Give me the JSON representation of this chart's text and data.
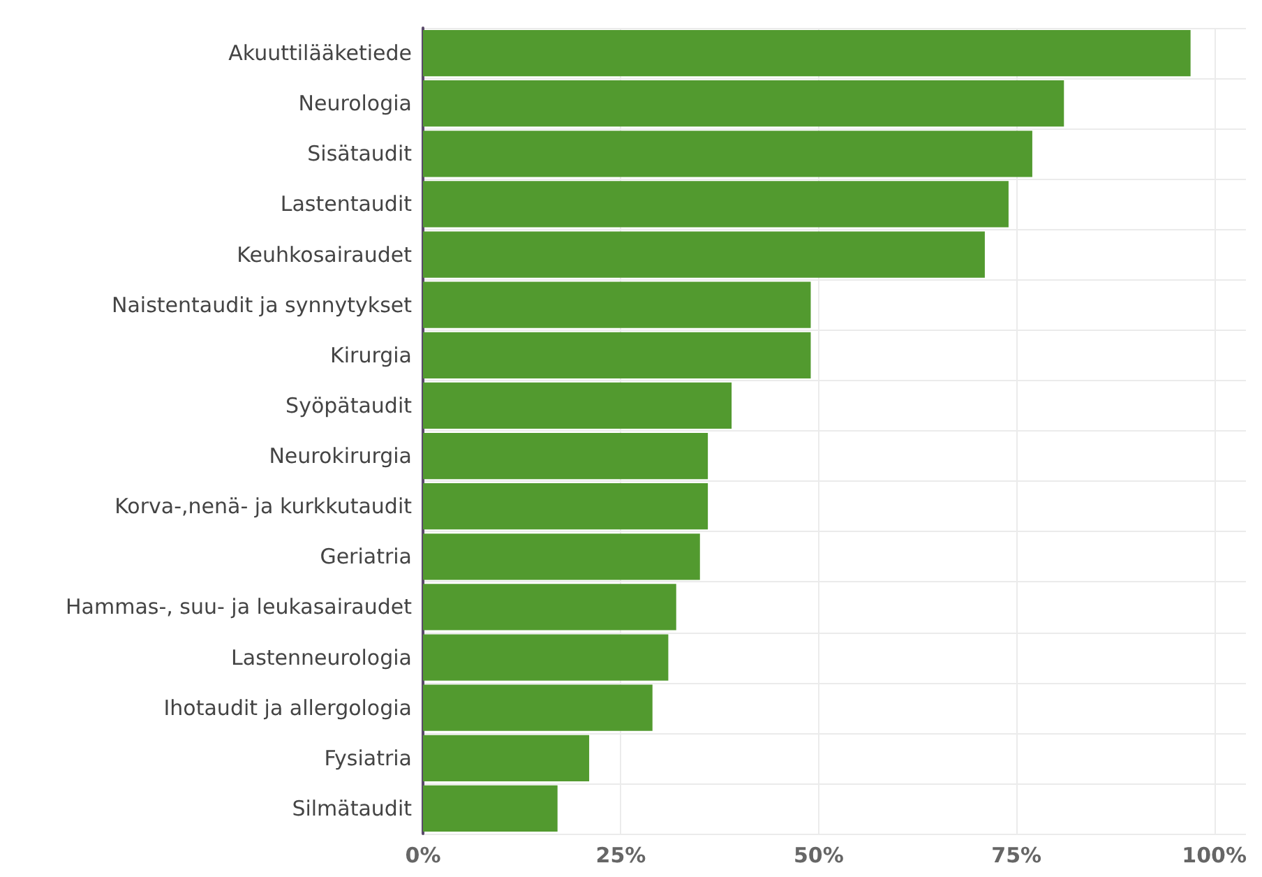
{
  "chart_data": {
    "type": "bar",
    "orientation": "horizontal",
    "categories": [
      "Akuuttilääketiede",
      "Neurologia",
      "Sisätaudit",
      "Lastentaudit",
      "Keuhkosairaudet",
      "Naistentaudit ja synnytykset",
      "Kirurgia",
      "Syöpätaudit",
      "Neurokirurgia",
      "Korva-,nenä- ja kurkkutaudit",
      "Geriatria",
      "Hammas-, suu- ja leukasairaudet",
      "Lastenneurologia",
      "Ihotaudit ja allergologia",
      "Fysiatria",
      "Silmätaudit"
    ],
    "values": [
      97,
      81,
      77,
      74,
      71,
      49,
      49,
      39,
      36,
      36,
      35,
      32,
      31,
      29,
      21,
      17
    ],
    "color": "#529a2f",
    "xlim": [
      0,
      104
    ],
    "xticks": [
      {
        "value": 0,
        "label": "0%"
      },
      {
        "value": 25,
        "label": "25%"
      },
      {
        "value": 50,
        "label": "50%"
      },
      {
        "value": 75,
        "label": "75%"
      },
      {
        "value": 100,
        "label": "100%"
      }
    ],
    "grid": true
  }
}
